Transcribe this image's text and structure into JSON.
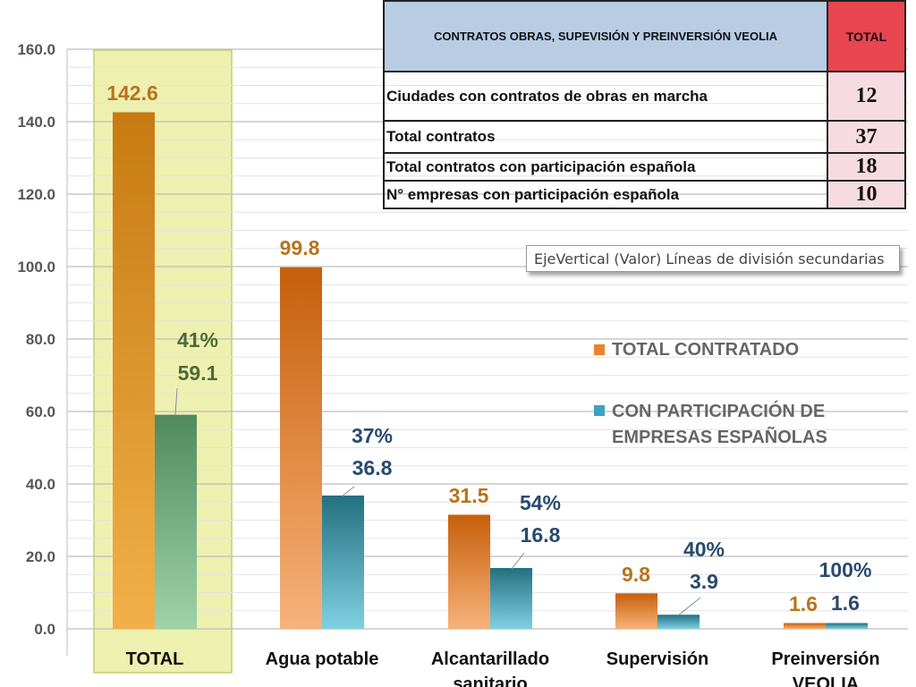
{
  "chart_data": {
    "type": "bar",
    "categories": [
      "TOTAL",
      "Agua potable",
      "Alcantarillado sanitario",
      "Supervisión",
      "Preinversión VEOLIA"
    ],
    "series": [
      {
        "name": "TOTAL CONTRATADO",
        "values": [
          142.6,
          99.8,
          31.5,
          9.8,
          1.6
        ],
        "color": "#e8852e"
      },
      {
        "name": "CON PARTICIPACIÓN DE EMPRESAS ESPAÑOLAS",
        "values": [
          59.1,
          36.8,
          16.8,
          3.9,
          1.6
        ],
        "color": "#3fa2bd"
      }
    ],
    "value_labels": {
      "total": [
        "142.6",
        "99.8",
        "31.5",
        "9.8",
        "1.6"
      ],
      "participation": [
        "59.1",
        "36.8",
        "16.8",
        "3.9",
        "1.6"
      ],
      "percent": [
        "41%",
        "37%",
        "54%",
        "40%",
        "100%"
      ]
    },
    "y_ticks": [
      "0.0",
      "20.0",
      "40.0",
      "60.0",
      "80.0",
      "100.0",
      "120.0",
      "140.0",
      "160.0"
    ],
    "ylim": [
      0,
      160
    ],
    "highlighted_category": "TOTAL",
    "grid": true,
    "legend_position": "right",
    "colors": {
      "total_series": "#e8852e",
      "participation_series": "#3fa2bd",
      "total_category_participation": "#5d9c6e",
      "highlight_box": "#eef0b0",
      "total_label": "#b7741c",
      "participation_label": "#294a6e",
      "total_category_participation_label": "#4b6b3a"
    }
  },
  "table": {
    "header": "CONTRATOS OBRAS, SUPEVISIÓN Y PREINVERSIÓN VEOLIA",
    "total_header": "TOTAL",
    "rows": [
      {
        "label": "Ciudades con contratos de obras en marcha",
        "value": "12"
      },
      {
        "label": "Total contratos",
        "value": "37"
      },
      {
        "label": "Total contratos con participación española",
        "value": "18"
      },
      {
        "label": "N° empresas con participación española",
        "value": "10"
      }
    ]
  },
  "tooltip": {
    "text": "EjeVertical (Valor)  Líneas de división secundarias"
  }
}
